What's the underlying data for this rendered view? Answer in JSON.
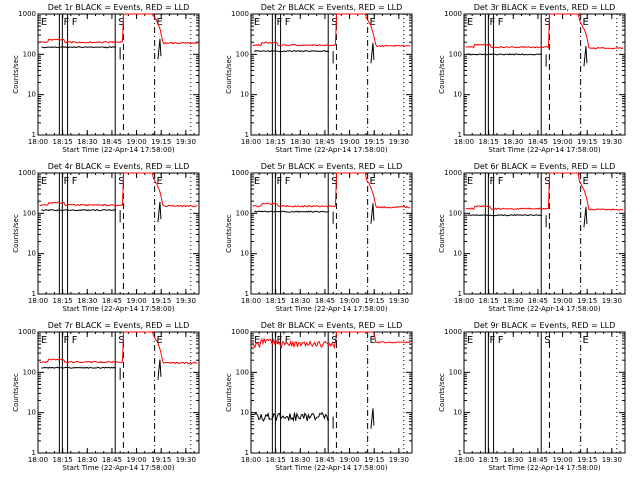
{
  "common": {
    "xlabel": "Start Time (22-Apr-14 17:58:00)",
    "ylabel": "Counts/sec",
    "x_ticks": [
      "18:00",
      "18:15",
      "18:30",
      "18:45",
      "19:00",
      "19:15",
      "19:30"
    ],
    "y_ticks": [
      "1",
      "10",
      "100",
      "1000"
    ],
    "markers": [
      "E",
      "F",
      "F",
      "S",
      "E"
    ]
  },
  "colors": {
    "events": "#000000",
    "lld": "#ff0000"
  },
  "chart_data": [
    {
      "type": "line",
      "title": "Det 1r BLACK = Events, RED = LLD",
      "yscale": "log",
      "ylim": [
        1,
        1000
      ],
      "xlim": [
        "18:00",
        "19:38"
      ],
      "series": [
        {
          "name": "Events",
          "color": "#000000",
          "level": 150
        },
        {
          "name": "LLD",
          "color": "#ff0000",
          "level": 200
        }
      ]
    },
    {
      "type": "line",
      "title": "Det 2r BLACK = Events, RED = LLD",
      "yscale": "log",
      "ylim": [
        1,
        1000
      ],
      "xlim": [
        "18:00",
        "19:38"
      ],
      "series": [
        {
          "name": "Events",
          "color": "#000000",
          "level": 120
        },
        {
          "name": "LLD",
          "color": "#ff0000",
          "level": 170
        }
      ]
    },
    {
      "type": "line",
      "title": "Det 3r BLACK = Events, RED = LLD",
      "yscale": "log",
      "ylim": [
        1,
        1000
      ],
      "xlim": [
        "18:00",
        "19:38"
      ],
      "series": [
        {
          "name": "Events",
          "color": "#000000",
          "level": 100
        },
        {
          "name": "LLD",
          "color": "#ff0000",
          "level": 150
        }
      ]
    },
    {
      "type": "line",
      "title": "Det 4r BLACK = Events, RED = LLD",
      "yscale": "log",
      "ylim": [
        1,
        1000
      ],
      "xlim": [
        "18:00",
        "19:38"
      ],
      "series": [
        {
          "name": "Events",
          "color": "#000000",
          "level": 120
        },
        {
          "name": "LLD",
          "color": "#ff0000",
          "level": 160
        }
      ]
    },
    {
      "type": "line",
      "title": "Det 5r BLACK = Events, RED = LLD",
      "yscale": "log",
      "ylim": [
        1,
        1000
      ],
      "xlim": [
        "18:00",
        "19:38"
      ],
      "series": [
        {
          "name": "Events",
          "color": "#000000",
          "level": 110
        },
        {
          "name": "LLD",
          "color": "#ff0000",
          "level": 150
        }
      ]
    },
    {
      "type": "line",
      "title": "Det 6r BLACK = Events, RED = LLD",
      "yscale": "log",
      "ylim": [
        1,
        1000
      ],
      "xlim": [
        "18:00",
        "19:38"
      ],
      "series": [
        {
          "name": "Events",
          "color": "#000000",
          "level": 90
        },
        {
          "name": "LLD",
          "color": "#ff0000",
          "level": 130
        }
      ]
    },
    {
      "type": "line",
      "title": "Det 7r BLACK = Events, RED = LLD",
      "yscale": "log",
      "ylim": [
        1,
        1000
      ],
      "xlim": [
        "18:00",
        "19:38"
      ],
      "series": [
        {
          "name": "Events",
          "color": "#000000",
          "level": 130
        },
        {
          "name": "LLD",
          "color": "#ff0000",
          "level": 180
        }
      ]
    },
    {
      "type": "line",
      "title": "Det 8r BLACK = Events, RED = LLD",
      "yscale": "log",
      "ylim": [
        1,
        1000
      ],
      "xlim": [
        "18:00",
        "19:38"
      ],
      "series": [
        {
          "name": "Events",
          "color": "#000000",
          "level": 8
        },
        {
          "name": "LLD",
          "color": "#ff0000",
          "level": 500
        }
      ]
    },
    {
      "type": "line",
      "title": "Det 9r BLACK = Events, RED = LLD",
      "yscale": "log",
      "ylim": [
        1,
        1000
      ],
      "xlim": [
        "18:00",
        "19:38"
      ],
      "series": []
    }
  ]
}
